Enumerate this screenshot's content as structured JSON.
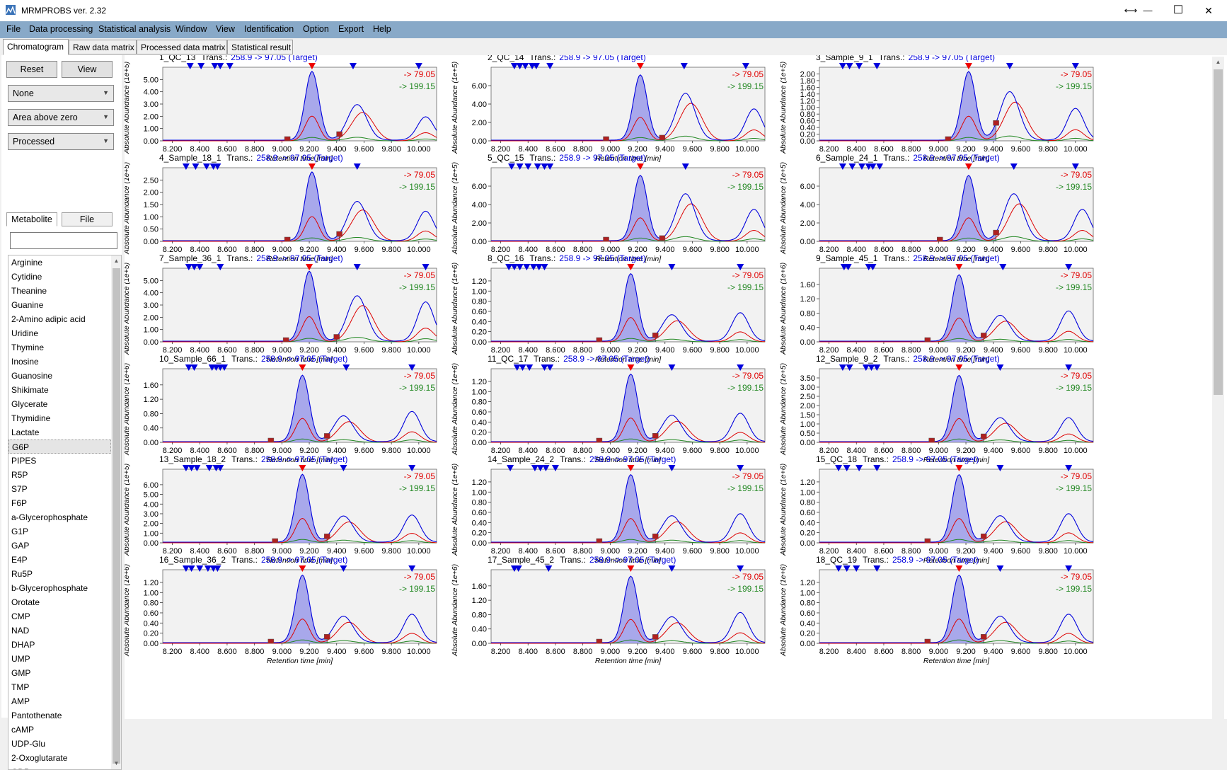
{
  "window": {
    "title": "MRMPROBS ver. 2.32",
    "controls": {
      "resize": "⟷",
      "minimize": "—",
      "maximize": "☐",
      "close": "✕"
    }
  },
  "menu": [
    "File",
    "Data processing",
    "Statistical analysis",
    "Window",
    "View",
    "Identification",
    "Option",
    "Export",
    "Help"
  ],
  "tabs": [
    "Chromatogram",
    "Raw data matrix",
    "Processed data matrix",
    "Statistical result"
  ],
  "left_panel": {
    "reset_label": "Reset",
    "view_label": "View",
    "combo1": "None",
    "combo2": "Area above zero",
    "combo3": "Processed",
    "subtabs": [
      "Metabolite",
      "File"
    ],
    "search_value": "",
    "metabolites": [
      "Arginine",
      "Cytidine",
      "Theanine",
      "Guanine",
      "2-Amino adipic acid",
      "Uridine",
      "Thymine",
      "Inosine",
      "Guanosine",
      "Shikimate",
      "Glycerate",
      "Thymidine",
      "Lactate",
      "G6P",
      "PIPES",
      "R5P",
      "S7P",
      "F6P",
      "a-Glycerophosphate",
      "G1P",
      "GAP",
      "E4P",
      "Ru5P",
      "b-Glycerophosphate",
      "Orotate",
      "CMP",
      "NAD",
      "DHAP",
      "UMP",
      "GMP",
      "TMP",
      "AMP",
      "Pantothenate",
      "cAMP",
      "UDP-Glu",
      "2-Oxoglutarate",
      "GDP"
    ],
    "selected_metabolite": "G6P"
  },
  "chart_common": {
    "trans_label": "Trans.:",
    "target_transition": "258.9 -> 97.05 (Target)",
    "qualifier_1": "-> 79.05",
    "qualifier_2": "-> 199.15",
    "xlabel": "Retention time [min]",
    "x_ticks": [
      "8.200",
      "8.400",
      "8.600",
      "8.800",
      "9.000",
      "9.200",
      "9.400",
      "9.600",
      "9.800",
      "10.000"
    ],
    "colors": {
      "target": "#0000dd",
      "qualifier_1": "#dd0000",
      "qualifier_2": "#228822",
      "peak_fill": "#8f8fe8",
      "marker": "#b02020",
      "grid_bg": "#f2f2f2"
    }
  },
  "chart_data": [
    {
      "type": "line",
      "title": "1_QC_13",
      "ylabel": "Absolute Abundance (1e+5)",
      "y_ticks": [
        "0.00",
        "1.00",
        "2.00",
        "3.00",
        "4.00",
        "5.00"
      ],
      "peaks": [
        9.22,
        9.55,
        10.05
      ],
      "heights": [
        5.6,
        2.9,
        1.9
      ],
      "y_max": 6.0,
      "left_edge": 9.04,
      "right_edge": 9.42,
      "blue_markers": [
        8.33,
        8.41,
        8.51,
        8.55,
        8.62,
        9.52,
        10.0
      ],
      "red_marker": 9.22
    },
    {
      "type": "line",
      "title": "2_QC_14",
      "ylabel": "Absolute Abundance (1e+5)",
      "y_ticks": [
        "0.00",
        "2.00",
        "4.00",
        "6.00"
      ],
      "peaks": [
        9.22,
        9.55,
        10.05
      ],
      "heights": [
        7.1,
        5.1,
        3.4
      ],
      "y_max": 8.0,
      "left_edge": 8.97,
      "right_edge": 9.38,
      "blue_markers": [
        8.3,
        8.34,
        8.38,
        8.43,
        8.46,
        8.56,
        9.54,
        9.99
      ],
      "red_marker": 9.22
    },
    {
      "type": "line",
      "title": "3_Sample_9_1",
      "ylabel": "Absolute Abundance (1e+5)",
      "y_ticks": [
        "0.00",
        "0.20",
        "0.40",
        "0.60",
        "0.80",
        "1.00",
        "1.20",
        "1.40",
        "1.60",
        "1.80",
        "2.00"
      ],
      "peaks": [
        9.22,
        9.52,
        10.0
      ],
      "heights": [
        2.05,
        1.45,
        0.95
      ],
      "y_max": 2.2,
      "left_edge": 9.07,
      "right_edge": 9.42,
      "blue_markers": [
        8.3,
        8.35,
        8.42,
        8.55,
        9.52,
        10.0
      ],
      "red_marker": 9.22
    },
    {
      "type": "line",
      "title": "4_Sample_18_1",
      "ylabel": "Absolute Abundance (1e+5)",
      "y_ticks": [
        "0.00",
        "0.50",
        "1.00",
        "1.50",
        "2.00",
        "2.50"
      ],
      "peaks": [
        9.22,
        9.55,
        10.05
      ],
      "heights": [
        2.8,
        1.6,
        1.2
      ],
      "y_max": 3.0,
      "left_edge": 9.04,
      "right_edge": 9.42,
      "blue_markers": [
        8.3,
        8.37,
        8.45,
        8.5,
        8.53,
        9.55
      ],
      "red_marker": 9.22
    },
    {
      "type": "line",
      "title": "5_QC_15",
      "ylabel": "Absolute Abundance (1e+5)",
      "y_ticks": [
        "0.00",
        "2.00",
        "4.00",
        "6.00"
      ],
      "peaks": [
        9.22,
        9.55,
        10.05
      ],
      "heights": [
        7.1,
        5.1,
        3.4
      ],
      "y_max": 8.0,
      "left_edge": 8.97,
      "right_edge": 9.38,
      "blue_markers": [
        8.28,
        8.34,
        8.4,
        8.47,
        8.52,
        8.56,
        9.55
      ],
      "red_marker": 9.22
    },
    {
      "type": "line",
      "title": "6_Sample_24_1",
      "ylabel": "Absolute Abundance (1e+5)",
      "y_ticks": [
        "0.00",
        "2.00",
        "4.00",
        "6.00"
      ],
      "peaks": [
        9.22,
        9.55,
        10.05
      ],
      "heights": [
        7.1,
        5.1,
        3.4
      ],
      "y_max": 8.0,
      "left_edge": 9.01,
      "right_edge": 9.42,
      "blue_markers": [
        8.3,
        8.37,
        8.44,
        8.49,
        8.52,
        8.57,
        9.55,
        10.0
      ],
      "red_marker": 9.22
    },
    {
      "type": "line",
      "title": "7_Sample_36_1",
      "ylabel": "Absolute Abundance (1e+5)",
      "y_ticks": [
        "0.00",
        "1.00",
        "2.00",
        "3.00",
        "4.00",
        "5.00"
      ],
      "peaks": [
        9.2,
        9.55,
        10.05
      ],
      "heights": [
        5.7,
        3.7,
        3.2
      ],
      "y_max": 6.0,
      "left_edge": 9.03,
      "right_edge": 9.4,
      "blue_markers": [
        8.32,
        8.36,
        8.4,
        8.55,
        9.55,
        10.05
      ],
      "red_marker": 9.2
    },
    {
      "type": "line",
      "title": "8_QC_16",
      "ylabel": "Absolute Abundance (1e+6)",
      "y_ticks": [
        "0.00",
        "0.20",
        "0.40",
        "0.60",
        "0.80",
        "1.00",
        "1.20"
      ],
      "peaks": [
        9.15,
        9.45,
        9.95
      ],
      "heights": [
        1.33,
        0.52,
        0.56
      ],
      "y_max": 1.45,
      "left_edge": 8.92,
      "right_edge": 9.33,
      "blue_markers": [
        8.26,
        8.3,
        8.34,
        8.39,
        8.44,
        8.48,
        8.52,
        9.45,
        9.95
      ],
      "red_marker": 9.15
    },
    {
      "type": "line",
      "title": "9_Sample_45_1",
      "ylabel": "Absolute Abundance (1e+6)",
      "y_ticks": [
        "0.00",
        "0.40",
        "0.80",
        "1.20",
        "1.60"
      ],
      "peaks": [
        9.15,
        9.45,
        9.95
      ],
      "heights": [
        1.85,
        0.72,
        0.84
      ],
      "y_max": 2.05,
      "left_edge": 8.92,
      "right_edge": 9.33,
      "blue_markers": [
        8.31,
        8.34,
        8.49,
        8.52,
        9.47,
        9.95
      ],
      "red_marker": 9.15
    },
    {
      "type": "line",
      "title": "10_Sample_66_1",
      "ylabel": "Absolute Abundance (1e+6)",
      "y_ticks": [
        "0.00",
        "0.40",
        "0.80",
        "1.20",
        "1.60"
      ],
      "peaks": [
        9.15,
        9.45,
        9.95
      ],
      "heights": [
        1.85,
        0.72,
        0.84
      ],
      "y_max": 2.05,
      "left_edge": 8.92,
      "right_edge": 9.33,
      "blue_markers": [
        8.32,
        8.36,
        8.49,
        8.52,
        8.55,
        8.58,
        9.47,
        9.95
      ],
      "red_marker": 9.15
    },
    {
      "type": "line",
      "title": "11_QC_17",
      "ylabel": "Absolute Abundance (1e+6)",
      "y_ticks": [
        "0.00",
        "0.20",
        "0.40",
        "0.60",
        "0.80",
        "1.00",
        "1.20"
      ],
      "peaks": [
        9.15,
        9.45,
        9.95
      ],
      "heights": [
        1.33,
        0.52,
        0.56
      ],
      "y_max": 1.45,
      "left_edge": 8.92,
      "right_edge": 9.33,
      "blue_markers": [
        8.32,
        8.36,
        8.41,
        8.52,
        8.56,
        9.45,
        9.95
      ],
      "red_marker": 9.15
    },
    {
      "type": "line",
      "title": "12_Sample_9_2",
      "ylabel": "Absolute Abundance (1e+5)",
      "y_ticks": [
        "0.00",
        "0.50",
        "1.00",
        "1.50",
        "2.00",
        "2.50",
        "3.00",
        "3.50"
      ],
      "peaks": [
        9.15,
        9.45,
        9.95
      ],
      "heights": [
        3.6,
        1.3,
        1.3
      ],
      "y_max": 4.0,
      "left_edge": 8.95,
      "right_edge": 9.33,
      "blue_markers": [
        8.3,
        8.35,
        8.47,
        8.51,
        8.55,
        9.45,
        9.95
      ],
      "red_marker": 9.15
    },
    {
      "type": "line",
      "title": "13_Sample_18_2",
      "ylabel": "Absolute Abundance (1e+5)",
      "y_ticks": [
        "0.00",
        "1.00",
        "2.00",
        "3.00",
        "4.00",
        "5.00",
        "6.00"
      ],
      "peaks": [
        9.15,
        9.45,
        9.95
      ],
      "heights": [
        7.0,
        2.7,
        2.8
      ],
      "y_max": 7.6,
      "left_edge": 8.95,
      "right_edge": 9.33,
      "blue_markers": [
        8.3,
        8.34,
        8.38,
        8.47,
        8.52,
        8.55,
        9.45,
        9.95
      ],
      "red_marker": 9.15
    },
    {
      "type": "line",
      "title": "14_Sample_24_2",
      "ylabel": "Absolute Abundance (1e+6)",
      "y_ticks": [
        "0.00",
        "0.20",
        "0.40",
        "0.60",
        "0.80",
        "1.00",
        "1.20"
      ],
      "peaks": [
        9.15,
        9.45,
        9.95
      ],
      "heights": [
        1.33,
        0.52,
        0.56
      ],
      "y_max": 1.45,
      "left_edge": 8.92,
      "right_edge": 9.33,
      "blue_markers": [
        8.27,
        8.45,
        8.49,
        8.53,
        8.6,
        9.45,
        9.95
      ],
      "red_marker": 9.15
    },
    {
      "type": "line",
      "title": "15_QC_18",
      "ylabel": "Absolute Abundance (1e+6)",
      "y_ticks": [
        "0.00",
        "0.20",
        "0.40",
        "0.60",
        "0.80",
        "1.00",
        "1.20"
      ],
      "peaks": [
        9.15,
        9.45,
        9.95
      ],
      "heights": [
        1.33,
        0.52,
        0.56
      ],
      "y_max": 1.45,
      "left_edge": 8.92,
      "right_edge": 9.33,
      "blue_markers": [
        8.27,
        8.33,
        8.42,
        8.55,
        9.45,
        9.95
      ],
      "red_marker": 9.15
    },
    {
      "type": "line",
      "title": "16_Sample_36_2",
      "ylabel": "Absolute Abundance (1e+6)",
      "y_ticks": [
        "0.00",
        "0.20",
        "0.40",
        "0.60",
        "0.80",
        "1.00",
        "1.20"
      ],
      "peaks": [
        9.15,
        9.45,
        9.95
      ],
      "heights": [
        1.33,
        0.52,
        0.56
      ],
      "y_max": 1.45,
      "left_edge": 8.92,
      "right_edge": 9.33,
      "blue_markers": [
        8.3,
        8.34,
        8.4,
        8.46,
        8.5,
        8.53,
        9.45,
        9.95
      ],
      "red_marker": 9.15
    },
    {
      "type": "line",
      "title": "17_Sample_45_2",
      "ylabel": "Absolute Abundance (1e+6)",
      "y_ticks": [
        "0.00",
        "0.40",
        "0.80",
        "1.20",
        "1.60"
      ],
      "peaks": [
        9.15,
        9.45,
        9.95
      ],
      "heights": [
        1.85,
        0.72,
        0.84
      ],
      "y_max": 2.05,
      "left_edge": 8.92,
      "right_edge": 9.33,
      "blue_markers": [
        8.3,
        8.33,
        8.55,
        9.45,
        9.95
      ],
      "red_marker": 9.15
    },
    {
      "type": "line",
      "title": "18_QC_19",
      "ylabel": "Absolute Abundance (1e+6)",
      "y_ticks": [
        "0.00",
        "0.20",
        "0.40",
        "0.60",
        "0.80",
        "1.00",
        "1.20"
      ],
      "peaks": [
        9.15,
        9.45,
        9.95
      ],
      "heights": [
        1.33,
        0.52,
        0.56
      ],
      "y_max": 1.45,
      "left_edge": 8.92,
      "right_edge": 9.33,
      "blue_markers": [
        8.27,
        8.33,
        8.4,
        8.55,
        9.45,
        9.95
      ],
      "red_marker": 9.15
    }
  ]
}
